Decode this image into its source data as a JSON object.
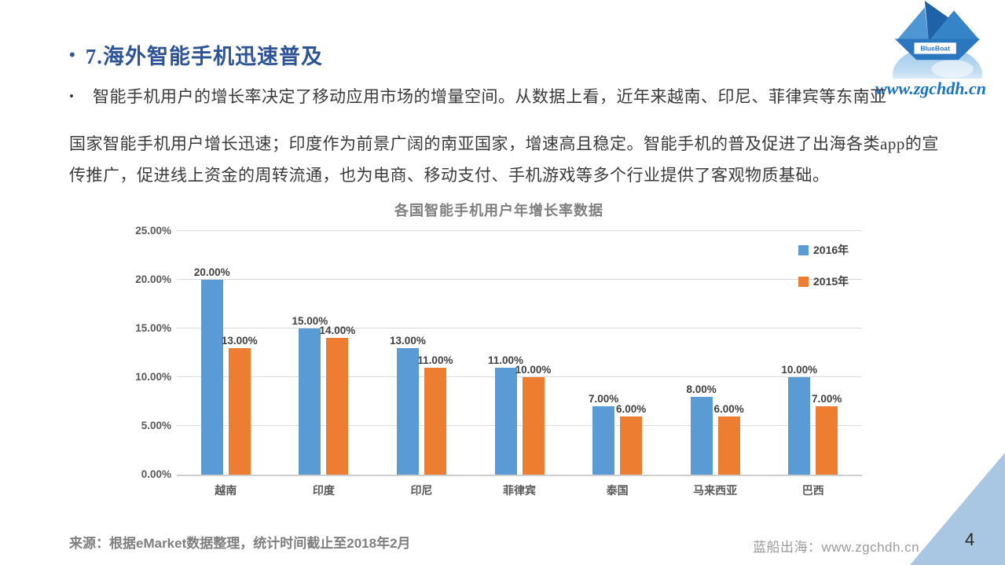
{
  "slide": {
    "title_bullet": "•",
    "title": "7.海外智能手机迅速普及",
    "body_bullet": "•",
    "body_lines": [
      "智能手机用户的增长率决定了移动应用市场的增量空间。从数据上看，近年来越南、印尼、菲律宾等东南亚",
      "国家智能手机用户增长迅速；印度作为前景广阔的南亚国家，增速高且稳定。智能手机的普及促进了出海各类app的宣",
      "传推广，促进线上资金的周转流通，也为电商、移动支付、手机游戏等多个行业提供了客观物质基础。"
    ],
    "source_note": "来源：根据eMarket数据整理，统计时间截止至2018年2月",
    "logo": {
      "badge_text": "BlueBoat",
      "url_text": "www.zgchdh.cn"
    },
    "footer": {
      "site_text": "蓝船出海：www.zgchdh.cn",
      "page_number": "4"
    },
    "colors": {
      "title_blue": "#2F5496",
      "series_2016": "#5B9BD5",
      "series_2015": "#ED7D31",
      "triangle_blue": "#A9C6E3",
      "logo_url_blue": "#1873C0"
    }
  },
  "chart_data": {
    "type": "bar",
    "title": "各国智能手机用户年增长率数据",
    "categories": [
      "越南",
      "印度",
      "印尼",
      "菲律宾",
      "泰国",
      "马来西亚",
      "巴西"
    ],
    "series": [
      {
        "name": "2016年",
        "color": "#5B9BD5",
        "values": [
          20,
          15,
          13,
          11,
          7,
          8,
          10
        ]
      },
      {
        "name": "2015年",
        "color": "#ED7D31",
        "values": [
          13,
          14,
          11,
          10,
          6,
          6,
          7
        ]
      }
    ],
    "value_labels": {
      "2016年": [
        "20.00%",
        "15.00%",
        "13.00%",
        "11.00%",
        "7.00%",
        "8.00%",
        "10.00%"
      ],
      "2015年": [
        "13.00%",
        "14.00%",
        "11.00%",
        "10.00%",
        "6.00%",
        "6.00%",
        "7.00%"
      ]
    },
    "xlabel": "",
    "ylabel": "",
    "ylim": [
      0,
      25
    ],
    "ytick_step": 5,
    "yticks": [
      "0.00%",
      "5.00%",
      "10.00%",
      "15.00%",
      "20.00%",
      "25.00%"
    ],
    "grid": true,
    "legend_position": "right"
  }
}
